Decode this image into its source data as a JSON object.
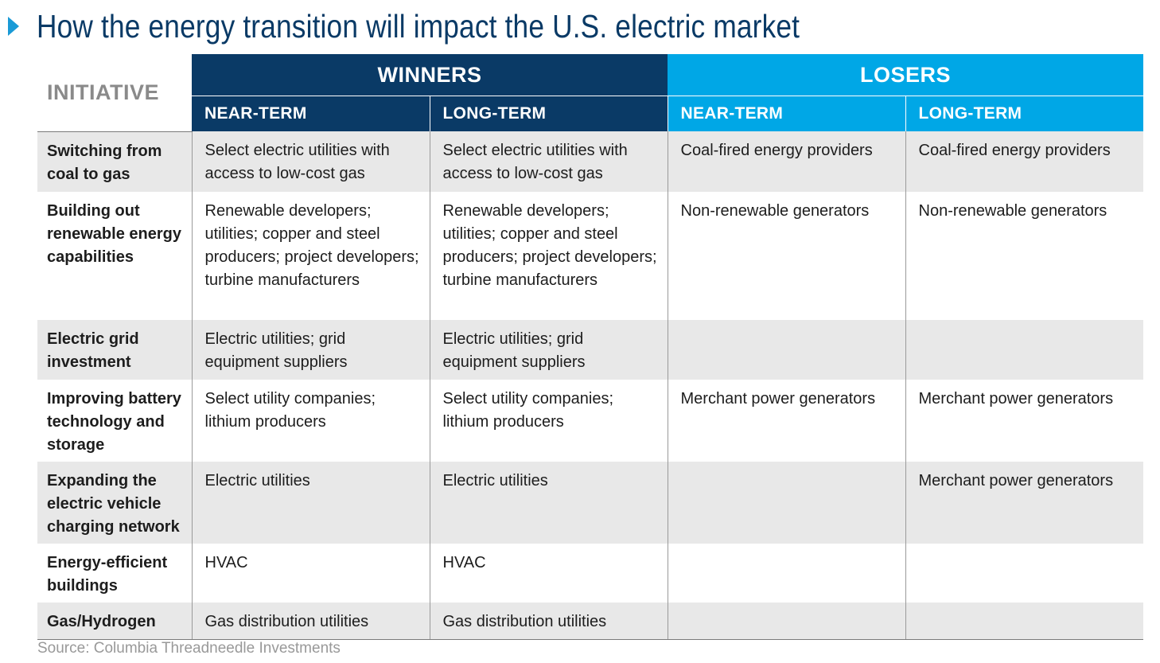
{
  "title": "How the energy transition will impact the U.S. electric market",
  "colors": {
    "navy": "#0a3a66",
    "sky": "#00a7e6",
    "row_shade": "#e8e8e8",
    "chevron": "#1a9ad6"
  },
  "table": {
    "initiative_header": "INITIATIVE",
    "winners_header": "WINNERS",
    "losers_header": "LOSERS",
    "near_term": "NEAR-TERM",
    "long_term": "LONG-TERM",
    "rows": [
      {
        "initiative": "Switching from coal to gas",
        "winners_near": "Select electric utilities with access to low-cost gas",
        "winners_long": "Select electric utilities with access to low-cost gas",
        "losers_near": "Coal-fired energy providers",
        "losers_long": "Coal-fired energy providers"
      },
      {
        "initiative": "Building out renewable energy capabilities",
        "winners_near": "Renewable developers; utilities; copper and steel producers; project developers; turbine manufacturers",
        "winners_long": "Renewable developers; utilities; copper and steel producers; project developers; turbine manufacturers",
        "losers_near": "Non-renewable generators",
        "losers_long": "Non-renewable generators"
      },
      {
        "initiative": "Electric grid investment",
        "winners_near": "Electric utilities; grid equipment suppliers",
        "winners_long": "Electric utilities; grid equipment suppliers",
        "losers_near": "",
        "losers_long": ""
      },
      {
        "initiative": "Improving battery technology and storage",
        "winners_near": "Select utility companies; lithium producers",
        "winners_long": "Select utility companies; lithium producers",
        "losers_near": "Merchant power generators",
        "losers_long": "Merchant power generators"
      },
      {
        "initiative": "Expanding the electric vehicle charging network",
        "winners_near": "Electric utilities",
        "winners_long": "Electric utilities",
        "losers_near": "",
        "losers_long": "Merchant power generators"
      },
      {
        "initiative": "Energy-efficient buildings",
        "winners_near": "HVAC",
        "winners_long": "HVAC",
        "losers_near": "",
        "losers_long": ""
      },
      {
        "initiative": "Gas/Hydrogen",
        "winners_near": "Gas distribution utilities",
        "winners_long": "Gas distribution utilities",
        "losers_near": "",
        "losers_long": ""
      }
    ]
  },
  "source": "Source: Columbia Threadneedle Investments"
}
